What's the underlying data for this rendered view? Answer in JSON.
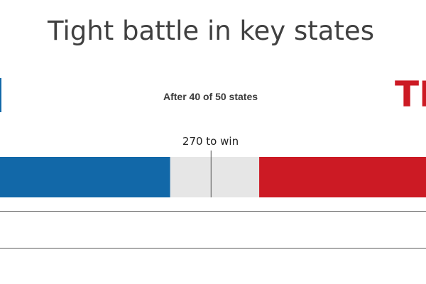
{
  "title": "Tight battle in key states",
  "subtitle": "After 40 of 50 states",
  "threshold_label": "270 to win",
  "candidates": {
    "left": {
      "name": "",
      "color": "#1268a8"
    },
    "right": {
      "name": "TR",
      "color": "#cc1a24"
    }
  },
  "chart_data": {
    "type": "bar",
    "orientation": "horizontal-stacked",
    "title": "Tight battle in key states",
    "subtitle": "After 40 of 50 states",
    "total": 538,
    "threshold": 270,
    "threshold_label": "270 to win",
    "series": [
      {
        "name": "",
        "value": 225,
        "color": "#1268a8"
      },
      {
        "name": "",
        "value": 98,
        "color": "#e6e6e6"
      },
      {
        "name": "",
        "value": 215,
        "color": "#cc1a24"
      }
    ]
  }
}
